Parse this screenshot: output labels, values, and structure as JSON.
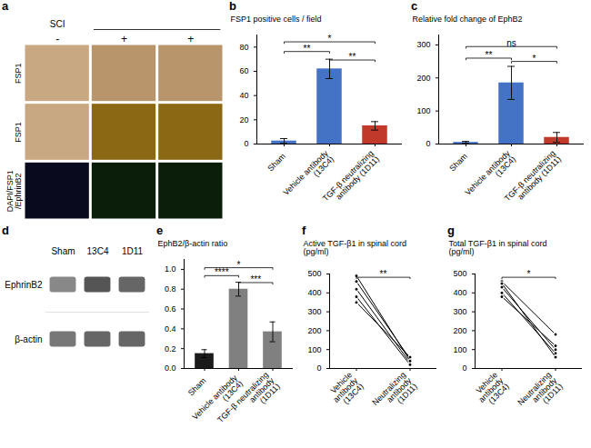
{
  "chart_data": [
    {
      "type": "image",
      "title": "a",
      "categories": [
        "FSP1",
        "FSP1",
        "DAPI/FSP1\n/EphrinB2"
      ],
      "colors": [
        [
          "#c8a882",
          "#b8956a",
          "#b8956a"
        ],
        [
          "#c8a882",
          "#8b6914",
          "#8b6914"
        ],
        [
          "#0a0a1e",
          "#0a1e0a",
          "#0a1e0a"
        ]
      ],
      "annotations": [
        "SCI",
        "-",
        "+",
        "+"
      ]
    },
    {
      "type": "bar",
      "title": "b",
      "categories": [
        "Sham",
        "Vehicle antibody\n(13C4)",
        "TGF-β neutralizing\nantibody (1D11)"
      ],
      "values": [
        2.5,
        62.0,
        15.0
      ],
      "errors": [
        2.0,
        8.0,
        3.5
      ],
      "colors": [
        "#4472C4",
        "#4472C4",
        "#C0392B"
      ],
      "ylabel": "FSP1 positive cells / field",
      "ylim": [
        0,
        90
      ],
      "yticks": [
        0,
        20,
        40,
        60,
        80
      ],
      "annotations": [
        {
          "x1": "Sham",
          "x2": "Vehicle antibody\n(13C4)",
          "y": 75,
          "text": "**"
        },
        {
          "x1": "Vehicle antibody\n(13C4)",
          "x2": "TGF-β neutralizing\nantibody (1D11)",
          "y": 68,
          "text": "**"
        },
        {
          "x1": "Sham",
          "x2": "TGF-β neutralizing\nantibody (1D11)",
          "y": 83,
          "text": "*"
        }
      ]
    },
    {
      "type": "bar",
      "title": "c",
      "categories": [
        "Sham",
        "Vehicle antibody\n(13C4)",
        "TGF-β neutralizing\nantibody (1D11)"
      ],
      "values": [
        5.0,
        185.0,
        20.0
      ],
      "errors": [
        3.0,
        50.0,
        15.0
      ],
      "colors": [
        "#4472C4",
        "#4472C4",
        "#C0392B"
      ],
      "ylabel": "Relative fold change of EphB2",
      "ylim": [
        0,
        330
      ],
      "yticks": [
        0,
        100,
        200,
        300
      ],
      "annotations": [
        {
          "x1": "Sham",
          "x2": "Vehicle antibody\n(13C4)",
          "y": 255,
          "text": "**"
        },
        {
          "x1": "Vehicle antibody\n(13C4)",
          "x2": "TGF-β neutralizing\nantibody (1D11)",
          "y": 245,
          "text": "*"
        },
        {
          "x1": "Sham",
          "x2": "TGF-β neutralizing\nantibody (1D11)",
          "y": 290,
          "text": "ns"
        }
      ]
    },
    {
      "type": "image",
      "title": "d",
      "categories": [
        "Sham",
        "13C4",
        "1D11"
      ],
      "series": [
        {
          "name": "EphrinB2",
          "colors": [
            "#888888",
            "#555555",
            "#666666"
          ]
        },
        {
          "name": "β-actin",
          "colors": [
            "#777777",
            "#666666",
            "#666666"
          ]
        }
      ]
    },
    {
      "type": "bar",
      "title": "e",
      "categories": [
        "Sham",
        "Vehicle antibody\n(13C4)",
        "TGF-β neutralizing\nantibody\n(1D11)"
      ],
      "values": [
        0.15,
        0.8,
        0.37
      ],
      "errors": [
        0.04,
        0.07,
        0.1
      ],
      "colors": [
        "#1a1a1a",
        "#808080",
        "#808080"
      ],
      "ylabel": "EphB2/β-actin ratio",
      "ylim": [
        0,
        1.1
      ],
      "yticks": [
        {
          "value": 0.0,
          "label": "0.0"
        },
        0.2,
        0.4,
        0.6,
        0.8,
        {
          "value": 1.0,
          "label": "1.0"
        }
      ],
      "annotations": [
        {
          "x1": "Sham",
          "x2": "Vehicle antibody\n(13C4)",
          "y": 0.92,
          "text": "****"
        },
        {
          "x1": "Vehicle antibody\n(13C4)",
          "x2": "TGF-β neutralizing\nantibody\n(1D11)",
          "y": 0.85,
          "text": "***"
        },
        {
          "x1": "Sham",
          "x2": "TGF-β neutralizing\nantibody\n(1D11)",
          "y": 1.0,
          "text": "*"
        }
      ]
    },
    {
      "type": "line",
      "title": "f",
      "ylabel": "Active TGF-β1 in spinal cord\n(pg/ml)",
      "categories": [
        "Vehicle\nantibody\n(13C4)",
        "Neutralizing\nantibody\n(1D11)"
      ],
      "series": [
        {
          "values": [
            420,
            30
          ]
        },
        {
          "values": [
            380,
            20
          ]
        },
        {
          "values": [
            460,
            50
          ]
        },
        {
          "values": [
            350,
            60
          ]
        },
        {
          "values": [
            490,
            40
          ]
        }
      ],
      "marker": "circle",
      "ylim": [
        0,
        500
      ],
      "yticks": [
        0,
        100,
        200,
        300,
        400,
        500
      ],
      "annotations": [
        {
          "x1": "Vehicle\nantibody\n(13C4)",
          "x2": "Neutralizing\nantibody\n(1D11)",
          "y": 475,
          "text": "**"
        }
      ]
    },
    {
      "type": "line",
      "title": "g",
      "ylabel": "Total TGF-β1 in spinal cord\n(pg/ml)",
      "categories": [
        "Vehicle\nantibody\n(13C4)",
        "Neutralizing\nantibody\n(1D11)"
      ],
      "series": [
        {
          "values": [
            430,
            100
          ]
        },
        {
          "values": [
            460,
            180
          ]
        },
        {
          "values": [
            400,
            80
          ]
        },
        {
          "values": [
            380,
            120
          ]
        },
        {
          "values": [
            450,
            60
          ]
        }
      ],
      "marker": "circle",
      "ylim": [
        0,
        500
      ],
      "yticks": [
        0,
        100,
        200,
        300,
        400,
        500
      ],
      "annotations": [
        {
          "x1": "Vehicle\nantibody\n(13C4)",
          "x2": "Neutralizing\nantibody\n(1D11)",
          "y": 475,
          "text": "*"
        }
      ]
    }
  ]
}
